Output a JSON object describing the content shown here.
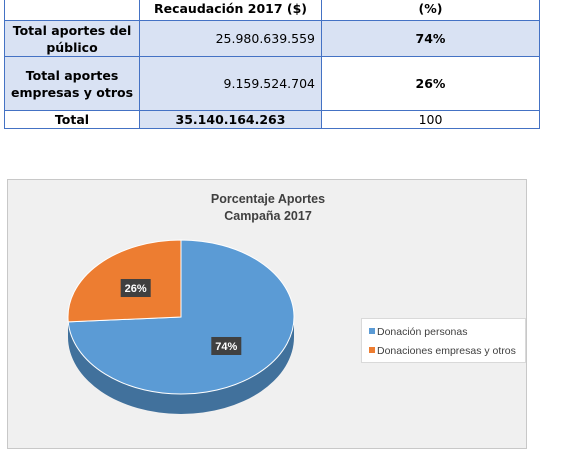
{
  "table": {
    "header": [
      "",
      "Recaudación 2017 ($)",
      "(%)"
    ],
    "rows": [
      {
        "label": "Total aportes del público",
        "amount": "25.980.639.559",
        "percent": "74%"
      },
      {
        "label": "Total aportes empresas y otros",
        "amount": "9.159.524.704",
        "percent": "26%"
      },
      {
        "label": "Total",
        "amount": "35.140.164.263",
        "percent": "100"
      }
    ]
  },
  "chart_data": {
    "type": "pie",
    "title": "Porcentaje Aportes Campaña 2017",
    "title_lines": [
      "Porcentaje Aportes",
      "Campaña 2017"
    ],
    "categories": [
      "Donación personas",
      "Donaciones empresas y otros"
    ],
    "values": [
      74,
      26
    ],
    "data_labels": [
      "74%",
      "26%"
    ],
    "colors": [
      "#5b9bd5",
      "#ed7d31"
    ],
    "legend_position": "right",
    "style": "3d"
  }
}
